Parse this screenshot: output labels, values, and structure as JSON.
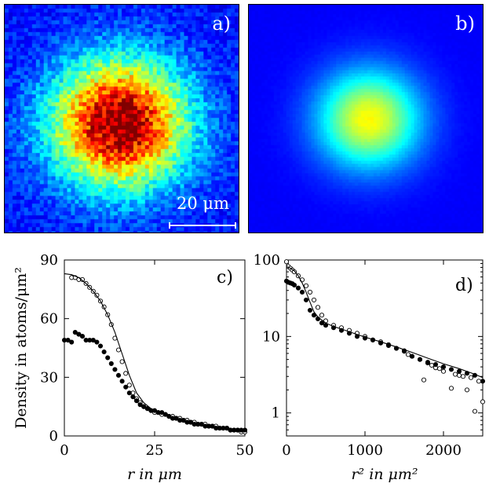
{
  "panels": {
    "a": {
      "label": "a)",
      "scale_label": "20 μm",
      "colormap": "jet",
      "peak_intensity": 1.0,
      "cloud_shape": "broad, noisy, anisotropic"
    },
    "b": {
      "label": "b)",
      "colormap": "jet",
      "peak_intensity": 0.55,
      "cloud_shape": "compact, smooth"
    }
  },
  "chart_data": [
    {
      "id": "c",
      "panel_label": "c)",
      "type": "scatter",
      "xlabel": "r in μm",
      "ylabel": "Density in atoms/μm²",
      "xlim": [
        0,
        50
      ],
      "ylim": [
        0,
        90
      ],
      "xticks": [
        0,
        25,
        50
      ],
      "yticks": [
        0,
        30,
        60,
        90
      ],
      "series": [
        {
          "name": "open",
          "marker": "open-circle",
          "x": [
            2,
            3,
            4,
            5,
            6,
            7,
            8,
            9,
            10,
            11,
            12,
            13,
            14,
            15,
            16,
            17,
            18,
            19,
            20,
            21,
            22,
            23,
            24,
            25,
            26,
            27,
            28,
            29,
            30,
            31,
            32,
            33,
            34,
            35,
            36,
            37,
            38,
            39,
            40,
            41,
            42,
            43,
            44,
            45,
            46,
            47,
            48,
            49,
            50
          ],
          "y": [
            81,
            81,
            80,
            80,
            78,
            76,
            74,
            72,
            69,
            66,
            62,
            57,
            50,
            44,
            38,
            32,
            26,
            22,
            19,
            17,
            15,
            14,
            13,
            12,
            12,
            11,
            11,
            10,
            10,
            9,
            9,
            8,
            8,
            7,
            7,
            6,
            6,
            6,
            5,
            5,
            5,
            4,
            4,
            4,
            3,
            3,
            3,
            2,
            2
          ]
        },
        {
          "name": "filled",
          "marker": "filled-circle",
          "x": [
            0,
            1,
            2,
            3,
            4,
            5,
            6,
            7,
            8,
            9,
            10,
            11,
            12,
            13,
            14,
            15,
            16,
            17,
            18,
            19,
            20,
            21,
            22,
            23,
            24,
            25,
            26,
            27,
            28,
            29,
            30,
            31,
            32,
            33,
            34,
            35,
            36,
            37,
            38,
            39,
            40,
            41,
            42,
            43,
            44,
            45,
            46,
            47,
            48,
            49,
            50
          ],
          "y": [
            49,
            49,
            48,
            53,
            52,
            51,
            49,
            49,
            49,
            48,
            46,
            43,
            40,
            37,
            34,
            31,
            28,
            25,
            22,
            20,
            18,
            16,
            15,
            14,
            13,
            13,
            12,
            12,
            11,
            10,
            9,
            9,
            8,
            8,
            7,
            7,
            6,
            6,
            6,
            5,
            5,
            5,
            4,
            4,
            4,
            4,
            3,
            3,
            3,
            3,
            3
          ]
        },
        {
          "name": "fit",
          "marker": "line",
          "x": [
            0,
            2,
            4,
            6,
            8,
            10,
            12,
            14,
            16,
            18,
            20,
            22,
            24,
            26,
            28,
            30,
            32,
            34,
            36,
            38,
            40,
            42,
            44,
            46,
            48,
            50
          ],
          "y": [
            83,
            82.5,
            81,
            78,
            74,
            69,
            62,
            53,
            42,
            31,
            22,
            17,
            14,
            12,
            11,
            9.5,
            8.5,
            7.5,
            6.5,
            5.8,
            5,
            4.3,
            3.8,
            3.2,
            2.8,
            2.4
          ]
        }
      ]
    },
    {
      "id": "d",
      "panel_label": "d)",
      "type": "scatter",
      "xlabel": "r² in μm²",
      "ylabel": "",
      "yscale": "log",
      "xlim": [
        0,
        2500
      ],
      "ylim": [
        0.5,
        100
      ],
      "xticks": [
        0,
        1000,
        2000
      ],
      "yticks": [
        1,
        10,
        100
      ],
      "series": [
        {
          "name": "open",
          "marker": "open-circle",
          "x": [
            0,
            25,
            50,
            75,
            100,
            150,
            200,
            250,
            300,
            350,
            400,
            450,
            500,
            600,
            700,
            800,
            900,
            1000,
            1100,
            1200,
            1300,
            1400,
            1500,
            1550,
            1600,
            1700,
            1750,
            1800,
            1850,
            1900,
            1950,
            2000,
            2100,
            2150,
            2200,
            2250,
            2300,
            2350,
            2400,
            2450,
            2500
          ],
          "y": [
            95,
            82,
            78,
            74,
            70,
            62,
            55,
            46,
            38,
            30,
            24,
            19,
            16,
            14,
            13,
            12,
            11,
            10,
            9,
            8.5,
            7.8,
            7,
            6.5,
            5.8,
            5.5,
            5,
            2.7,
            4.5,
            4.2,
            3.9,
            3.8,
            3.5,
            2.1,
            3.2,
            3.1,
            3.0,
            2.0,
            2.9,
            1.05,
            2.6,
            1.4
          ]
        },
        {
          "name": "filled",
          "marker": "filled-circle",
          "x": [
            0,
            25,
            50,
            75,
            100,
            150,
            200,
            250,
            300,
            350,
            400,
            450,
            500,
            600,
            700,
            800,
            900,
            1000,
            1100,
            1200,
            1300,
            1400,
            1500,
            1600,
            1700,
            1800,
            1900,
            2000,
            2100,
            2200,
            2300,
            2400,
            2500
          ],
          "y": [
            53,
            51,
            50,
            49,
            47,
            43,
            38,
            30,
            22,
            19,
            17,
            15,
            14,
            13,
            12,
            11,
            10,
            9.5,
            9,
            8.2,
            7.6,
            7,
            6.4,
            5.5,
            5,
            4.6,
            4.3,
            4,
            3.7,
            3.5,
            3.3,
            3.1,
            2.6
          ]
        },
        {
          "name": "fit",
          "marker": "line",
          "x": [
            0,
            50,
            100,
            150,
            200,
            250,
            300,
            350,
            400,
            500,
            600,
            700,
            800,
            1000,
            1200,
            1400,
            1600,
            1800,
            2000,
            2200,
            2400,
            2500
          ],
          "y": [
            82,
            78,
            72,
            62,
            50,
            38,
            28,
            21,
            18,
            15,
            13.5,
            12.5,
            11.5,
            9.8,
            8.5,
            7.3,
            6.2,
            5.2,
            4.4,
            3.8,
            3.2,
            2.9
          ]
        }
      ]
    }
  ]
}
